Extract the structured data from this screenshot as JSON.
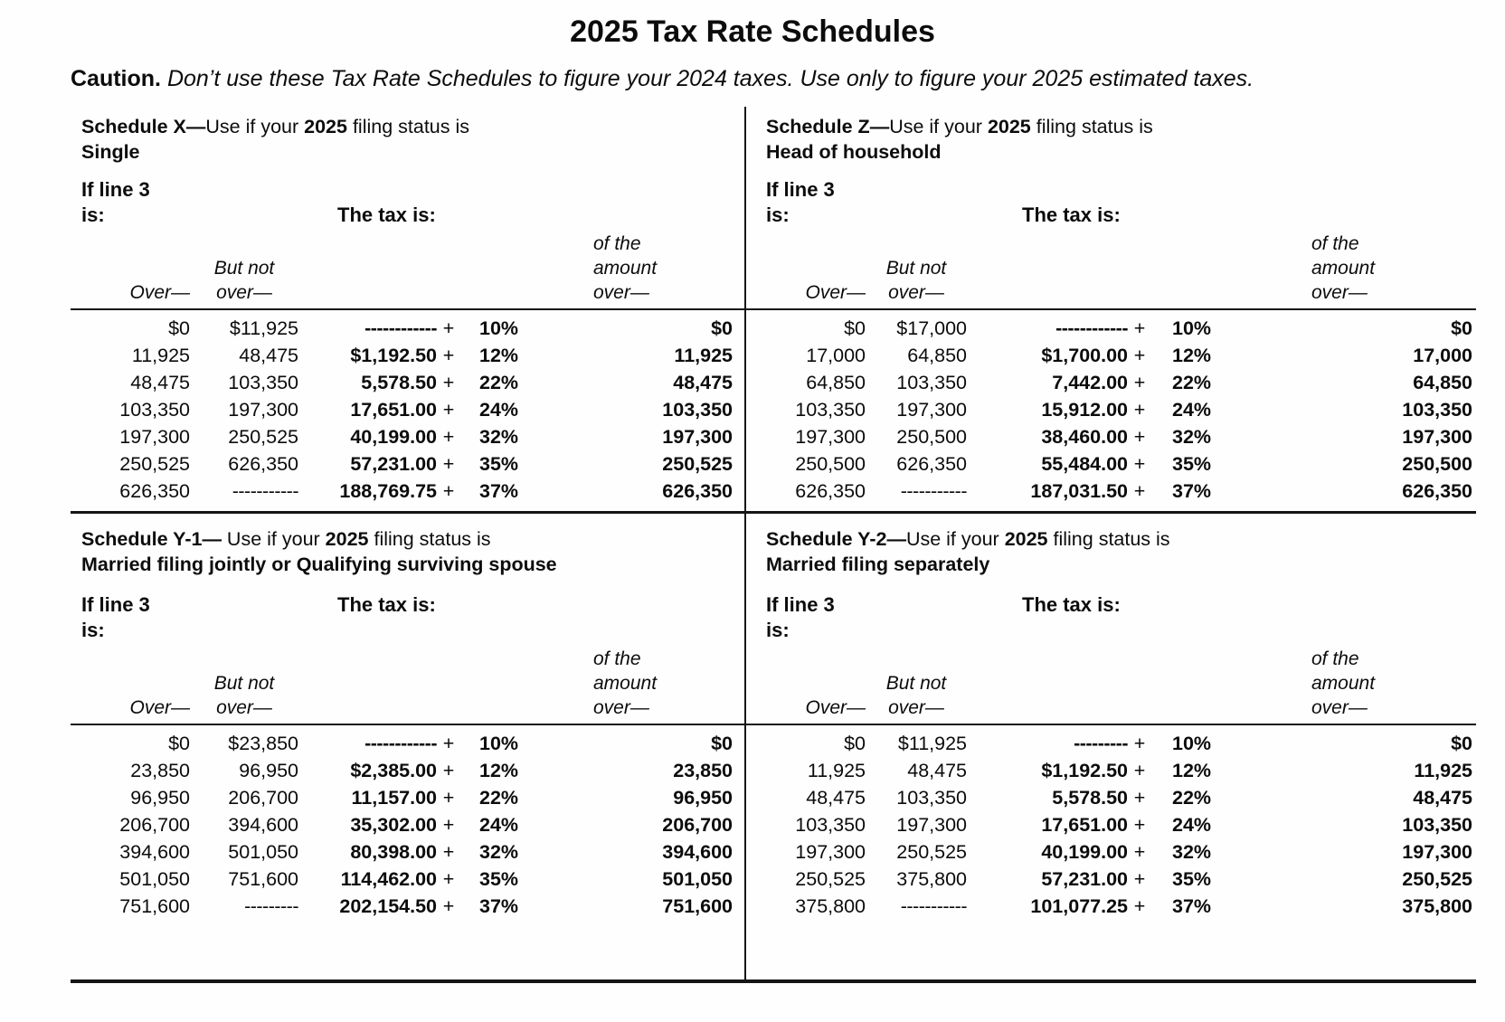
{
  "page": {
    "title": "2025 Tax Rate Schedules"
  },
  "caution": {
    "label": "Caution.",
    "text": " Don’t use these Tax Rate Schedules to figure your 2024 taxes. Use only to figure your 2025 estimated taxes."
  },
  "labels": {
    "if_line_1": "If line 3",
    "if_line_2": "is:",
    "tax_is": "The tax is:",
    "over": "Over—",
    "but_not_line1": "But not",
    "but_not_line2": "over—",
    "of_the_line1": "of the",
    "of_the_line2": "amount",
    "of_the_line3": "over—",
    "plus": "+"
  },
  "schedules": [
    {
      "key": "schedule-x",
      "heading_bold": "Schedule X—",
      "heading_mid": "Use if your ",
      "heading_year": "2025",
      "heading_tail": " filing status is",
      "status": "Single",
      "rows": [
        {
          "over": "$0",
          "but_not": "$11,925",
          "tax": "------------",
          "rate": "10%",
          "amount_over": "$0"
        },
        {
          "over": "11,925",
          "but_not": "48,475",
          "tax": "$1,192.50",
          "rate": "12%",
          "amount_over": "11,925"
        },
        {
          "over": "48,475",
          "but_not": "103,350",
          "tax": "5,578.50",
          "rate": "22%",
          "amount_over": "48,475"
        },
        {
          "over": "103,350",
          "but_not": "197,300",
          "tax": "17,651.00",
          "rate": "24%",
          "amount_over": "103,350"
        },
        {
          "over": "197,300",
          "but_not": "250,525",
          "tax": "40,199.00",
          "rate": "32%",
          "amount_over": "197,300"
        },
        {
          "over": "250,525",
          "but_not": "626,350",
          "tax": "57,231.00",
          "rate": "35%",
          "amount_over": "250,525"
        },
        {
          "over": "626,350",
          "but_not": "-----------",
          "tax": "188,769.75",
          "rate": "37%",
          "amount_over": "626,350"
        }
      ]
    },
    {
      "key": "schedule-z",
      "heading_bold": "Schedule Z—",
      "heading_mid": "Use if your ",
      "heading_year": "2025",
      "heading_tail": " filing status is",
      "status": "Head of household",
      "rows": [
        {
          "over": "$0",
          "but_not": "$17,000",
          "tax": "------------",
          "rate": "10%",
          "amount_over": "$0"
        },
        {
          "over": "17,000",
          "but_not": "64,850",
          "tax": "$1,700.00",
          "rate": "12%",
          "amount_over": "17,000"
        },
        {
          "over": "64,850",
          "but_not": "103,350",
          "tax": "7,442.00",
          "rate": "22%",
          "amount_over": "64,850"
        },
        {
          "over": "103,350",
          "but_not": "197,300",
          "tax": "15,912.00",
          "rate": "24%",
          "amount_over": "103,350"
        },
        {
          "over": "197,300",
          "but_not": "250,500",
          "tax": "38,460.00",
          "rate": "32%",
          "amount_over": "197,300"
        },
        {
          "over": "250,500",
          "but_not": "626,350",
          "tax": "55,484.00",
          "rate": "35%",
          "amount_over": "250,500"
        },
        {
          "over": "626,350",
          "but_not": "-----------",
          "tax": "187,031.50",
          "rate": "37%",
          "amount_over": "626,350"
        }
      ]
    },
    {
      "key": "schedule-y1",
      "heading_bold": "Schedule Y-1—",
      "heading_mid": " Use if your ",
      "heading_year": "2025",
      "heading_tail": " filing status is",
      "status": "Married filing jointly or Qualifying surviving spouse",
      "rows": [
        {
          "over": "$0",
          "but_not": "$23,850",
          "tax": "------------",
          "rate": "10%",
          "amount_over": "$0"
        },
        {
          "over": "23,850",
          "but_not": "96,950",
          "tax": "$2,385.00",
          "rate": "12%",
          "amount_over": "23,850"
        },
        {
          "over": "96,950",
          "but_not": "206,700",
          "tax": "11,157.00",
          "rate": "22%",
          "amount_over": "96,950"
        },
        {
          "over": "206,700",
          "but_not": "394,600",
          "tax": "35,302.00",
          "rate": "24%",
          "amount_over": "206,700"
        },
        {
          "over": "394,600",
          "but_not": "501,050",
          "tax": "80,398.00",
          "rate": "32%",
          "amount_over": "394,600"
        },
        {
          "over": "501,050",
          "but_not": "751,600",
          "tax": "114,462.00",
          "rate": "35%",
          "amount_over": "501,050"
        },
        {
          "over": "751,600",
          "but_not": "---------",
          "tax": "202,154.50",
          "rate": "37%",
          "amount_over": "751,600"
        }
      ]
    },
    {
      "key": "schedule-y2",
      "heading_bold": "Schedule Y-2—",
      "heading_mid": "Use if your ",
      "heading_year": "2025",
      "heading_tail": " filing status is",
      "status": "Married filing separately",
      "rows": [
        {
          "over": "$0",
          "but_not": "$11,925",
          "tax": "---------",
          "rate": "10%",
          "amount_over": "$0"
        },
        {
          "over": "11,925",
          "but_not": "48,475",
          "tax": "$1,192.50",
          "rate": "12%",
          "amount_over": "11,925"
        },
        {
          "over": "48,475",
          "but_not": "103,350",
          "tax": "5,578.50",
          "rate": "22%",
          "amount_over": "48,475"
        },
        {
          "over": "103,350",
          "but_not": "197,300",
          "tax": "17,651.00",
          "rate": "24%",
          "amount_over": "103,350"
        },
        {
          "over": "197,300",
          "but_not": "250,525",
          "tax": "40,199.00",
          "rate": "32%",
          "amount_over": "197,300"
        },
        {
          "over": "250,525",
          "but_not": "375,800",
          "tax": "57,231.00",
          "rate": "35%",
          "amount_over": "250,525"
        },
        {
          "over": "375,800",
          "but_not": "-----------",
          "tax": "101,077.25",
          "rate": "37%",
          "amount_over": "375,800"
        }
      ]
    }
  ]
}
